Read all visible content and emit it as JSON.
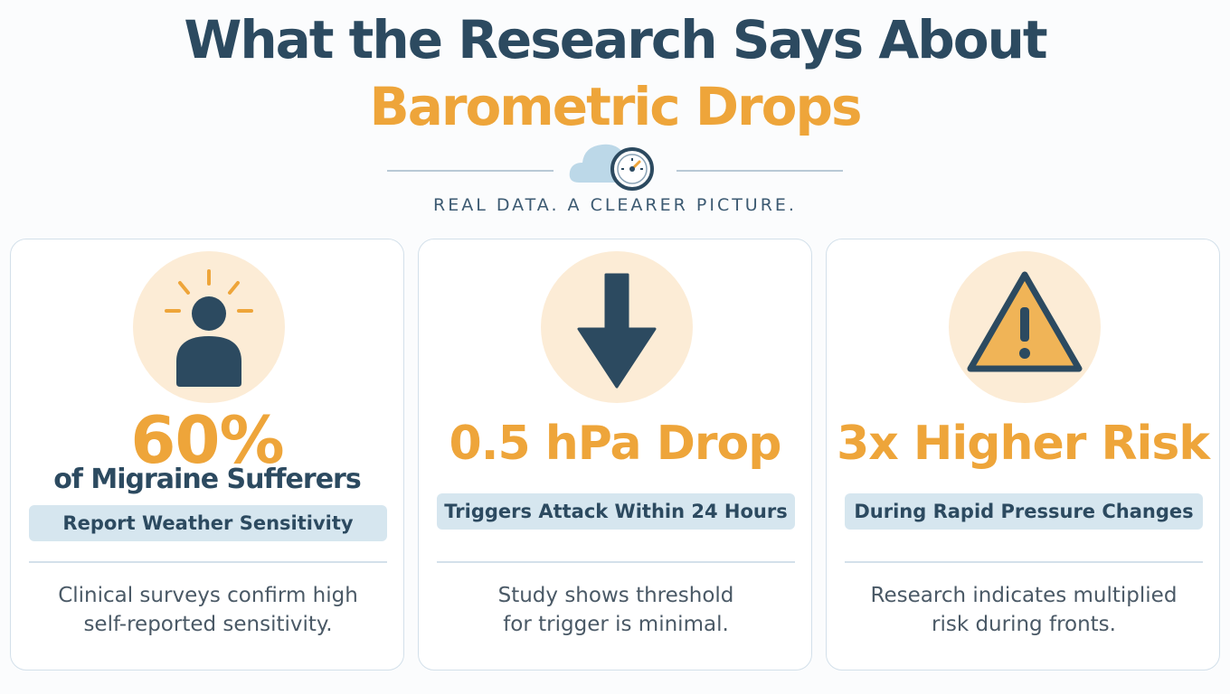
{
  "header": {
    "title_line1": "What the Research Says About",
    "title_line2": "Barometric Drops",
    "subtitle": "REAL DATA. A CLEARER PICTURE."
  },
  "colors": {
    "navy": "#2c4a60",
    "orange": "#eea53a",
    "peach": "#fcecd6",
    "pill": "#d6e6ef"
  },
  "cards": [
    {
      "icon": "person-alert-icon",
      "stat": "60%",
      "stat_sub": "of Migraine Sufferers",
      "pill": "Report Weather Sensitivity",
      "desc_line1": "Clinical surveys confirm high",
      "desc_line2": "self-reported sensitivity."
    },
    {
      "icon": "arrow-down-icon",
      "stat": "0.5 hPa Drop",
      "pill": "Triggers Attack Within 24 Hours",
      "desc_line1": "Study shows threshold",
      "desc_line2": "for trigger is minimal."
    },
    {
      "icon": "warning-icon",
      "stat": "3x Higher Risk",
      "pill": "During Rapid Pressure Changes",
      "desc_line1": "Research indicates multiplied",
      "desc_line2": "risk during fronts."
    }
  ]
}
